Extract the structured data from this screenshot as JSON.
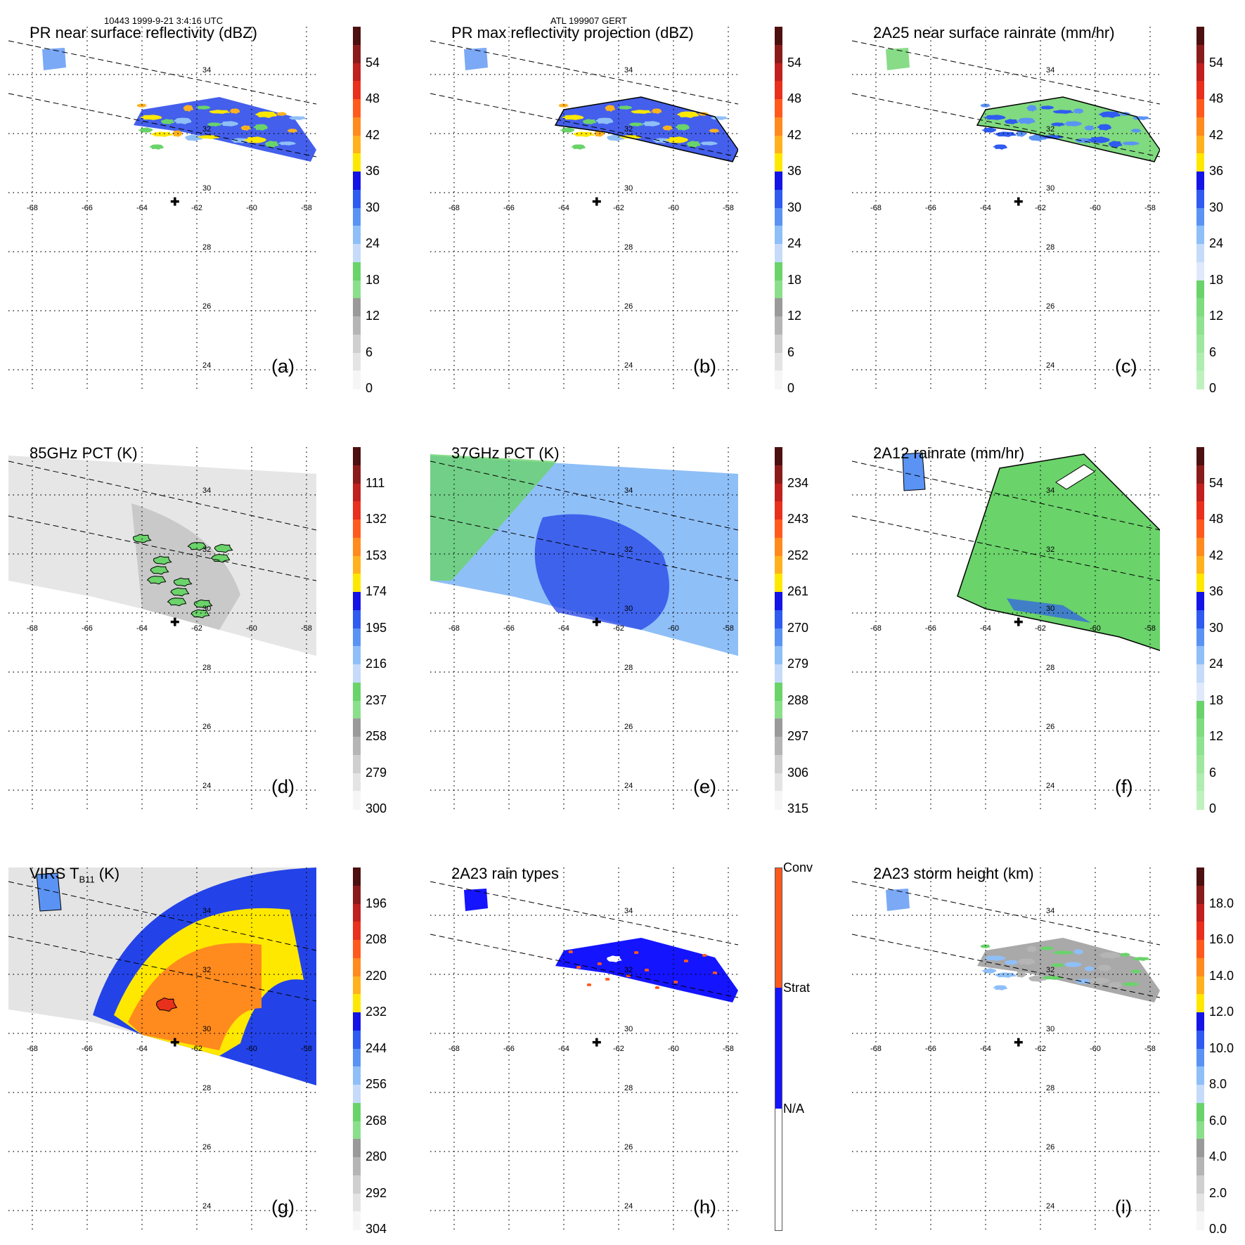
{
  "header": {
    "orbit_time": "10443 1999-9-21 3:4:16 UTC",
    "storm": "ATL 199907 GERT"
  },
  "map": {
    "lon_labels": [
      "-68",
      "-66",
      "-64",
      "-62",
      "-60",
      "-58"
    ],
    "lat_labels": [
      "34",
      "32",
      "30",
      "28",
      "26",
      "24"
    ],
    "center_marker": "plus-icon",
    "center_lon": -62.8,
    "center_lat": 29.7
  },
  "colors": {
    "field_green": "#6ad36a",
    "field_blue": "#2343e8",
    "conv_red": "#ff5a1e",
    "strat_blue": "#1414ff"
  },
  "panels": [
    {
      "id": "a",
      "title": "PR near surface reflectivity (dBZ)",
      "label": "(a)",
      "colorbar": {
        "ticks": [
          "54",
          "48",
          "42",
          "36",
          "30",
          "24",
          "18",
          "12",
          "6",
          "0"
        ],
        "colors": [
          "#4d1010",
          "#8a1b1b",
          "#c0201e",
          "#e8301c",
          "#ff5a1e",
          "#ff8a1e",
          "#ffb21e",
          "#ffe800",
          "#1414e6",
          "#2f5bf0",
          "#5a93f4",
          "#8fbff7",
          "#c6dbfa",
          "#6ad36a",
          "#8bdf8b",
          "#9a9a9a",
          "#b5b5b5",
          "#cfcfcf",
          "#e4e4e4",
          "#f6f6f6"
        ]
      }
    },
    {
      "id": "b",
      "title": "PR max reflectivity projection (dBZ)",
      "label": "(b)",
      "colorbar": {
        "ticks": [
          "54",
          "48",
          "42",
          "36",
          "30",
          "24",
          "18",
          "12",
          "6",
          "0"
        ],
        "colors": [
          "#4d1010",
          "#8a1b1b",
          "#c0201e",
          "#e8301c",
          "#ff5a1e",
          "#ff8a1e",
          "#ffb21e",
          "#ffe800",
          "#1414e6",
          "#2f5bf0",
          "#5a93f4",
          "#8fbff7",
          "#c6dbfa",
          "#6ad36a",
          "#8bdf8b",
          "#9a9a9a",
          "#b5b5b5",
          "#cfcfcf",
          "#e4e4e4",
          "#f6f6f6"
        ]
      }
    },
    {
      "id": "c",
      "title": "2A25 near surface rainrate (mm/hr)",
      "label": "(c)",
      "colorbar": {
        "ticks": [
          "54",
          "48",
          "42",
          "36",
          "30",
          "24",
          "18",
          "12",
          "6",
          "0"
        ],
        "colors": [
          "#4d1010",
          "#8a1b1b",
          "#c0201e",
          "#e8301c",
          "#ff5a1e",
          "#ff8a1e",
          "#ffb21e",
          "#ffe800",
          "#1414e6",
          "#2f5bf0",
          "#5a93f4",
          "#8fbff7",
          "#c6dbfa",
          "#dfe9fb",
          "#6ad36a",
          "#7fdc7f",
          "#8fe28f",
          "#9fe79f",
          "#afecaf",
          "#bff1bf"
        ]
      }
    },
    {
      "id": "d",
      "title": "85GHz PCT (K)",
      "label": "(d)",
      "colorbar": {
        "ticks": [
          "111",
          "132",
          "153",
          "174",
          "195",
          "216",
          "237",
          "258",
          "279",
          "300"
        ],
        "colors": [
          "#4d1010",
          "#8a1b1b",
          "#c0201e",
          "#e8301c",
          "#ff5a1e",
          "#ff8a1e",
          "#ffb21e",
          "#ffe800",
          "#1414e6",
          "#2f5bf0",
          "#5a93f4",
          "#8fbff7",
          "#c6dbfa",
          "#6ad36a",
          "#8bdf8b",
          "#9a9a9a",
          "#b5b5b5",
          "#cfcfcf",
          "#e4e4e4",
          "#f6f6f6"
        ]
      }
    },
    {
      "id": "e",
      "title": "37GHz PCT (K)",
      "label": "(e)",
      "colorbar": {
        "ticks": [
          "234",
          "243",
          "252",
          "261",
          "270",
          "279",
          "288",
          "297",
          "306",
          "315"
        ],
        "colors": [
          "#4d1010",
          "#8a1b1b",
          "#c0201e",
          "#e8301c",
          "#ff5a1e",
          "#ff8a1e",
          "#ffb21e",
          "#ffe800",
          "#1414e6",
          "#2f5bf0",
          "#5a93f4",
          "#8fbff7",
          "#c6dbfa",
          "#6ad36a",
          "#8bdf8b",
          "#9a9a9a",
          "#b5b5b5",
          "#cfcfcf",
          "#e4e4e4",
          "#f6f6f6"
        ]
      }
    },
    {
      "id": "f",
      "title": "2A12 rainrate (mm/hr)",
      "label": "(f)",
      "colorbar": {
        "ticks": [
          "54",
          "48",
          "42",
          "36",
          "30",
          "24",
          "18",
          "12",
          "6",
          "0"
        ],
        "colors": [
          "#4d1010",
          "#8a1b1b",
          "#c0201e",
          "#e8301c",
          "#ff5a1e",
          "#ff8a1e",
          "#ffb21e",
          "#ffe800",
          "#1414e6",
          "#2f5bf0",
          "#5a93f4",
          "#8fbff7",
          "#c6dbfa",
          "#dfe9fb",
          "#6ad36a",
          "#7fdc7f",
          "#8fe28f",
          "#9fe79f",
          "#afecaf",
          "#bff1bf"
        ]
      }
    },
    {
      "id": "g",
      "title": "VIRS T",
      "title_sub": "B11",
      "title_unit": " (K)",
      "label": "(g)",
      "colorbar": {
        "ticks": [
          "196",
          "208",
          "220",
          "232",
          "244",
          "256",
          "268",
          "280",
          "292",
          "304"
        ],
        "colors": [
          "#4d1010",
          "#8a1b1b",
          "#c0201e",
          "#e8301c",
          "#ff5a1e",
          "#ff8a1e",
          "#ffb21e",
          "#ffe800",
          "#1414e6",
          "#2f5bf0",
          "#5a93f4",
          "#8fbff7",
          "#c6dbfa",
          "#6ad36a",
          "#8bdf8b",
          "#9a9a9a",
          "#b5b5b5",
          "#cfcfcf",
          "#e4e4e4",
          "#f6f6f6"
        ]
      }
    },
    {
      "id": "h",
      "title": "2A23 rain types",
      "label": "(h)",
      "categories": [
        "Conv",
        "Strat",
        "N/A"
      ]
    },
    {
      "id": "i",
      "title": "2A23 storm height (km)",
      "label": "(i)",
      "colorbar": {
        "ticks": [
          "18.0",
          "16.0",
          "14.0",
          "12.0",
          "10.0",
          "8.0",
          "6.0",
          "4.0",
          "2.0",
          "0.0"
        ],
        "colors": [
          "#4d1010",
          "#8a1b1b",
          "#c0201e",
          "#e8301c",
          "#ff5a1e",
          "#ff8a1e",
          "#ffb21e",
          "#ffe800",
          "#1414e6",
          "#2f5bf0",
          "#5a93f4",
          "#8fbff7",
          "#c6dbfa",
          "#6ad36a",
          "#8bdf8b",
          "#9a9a9a",
          "#b5b5b5",
          "#cfcfcf",
          "#e4e4e4",
          "#f6f6f6"
        ]
      }
    }
  ]
}
